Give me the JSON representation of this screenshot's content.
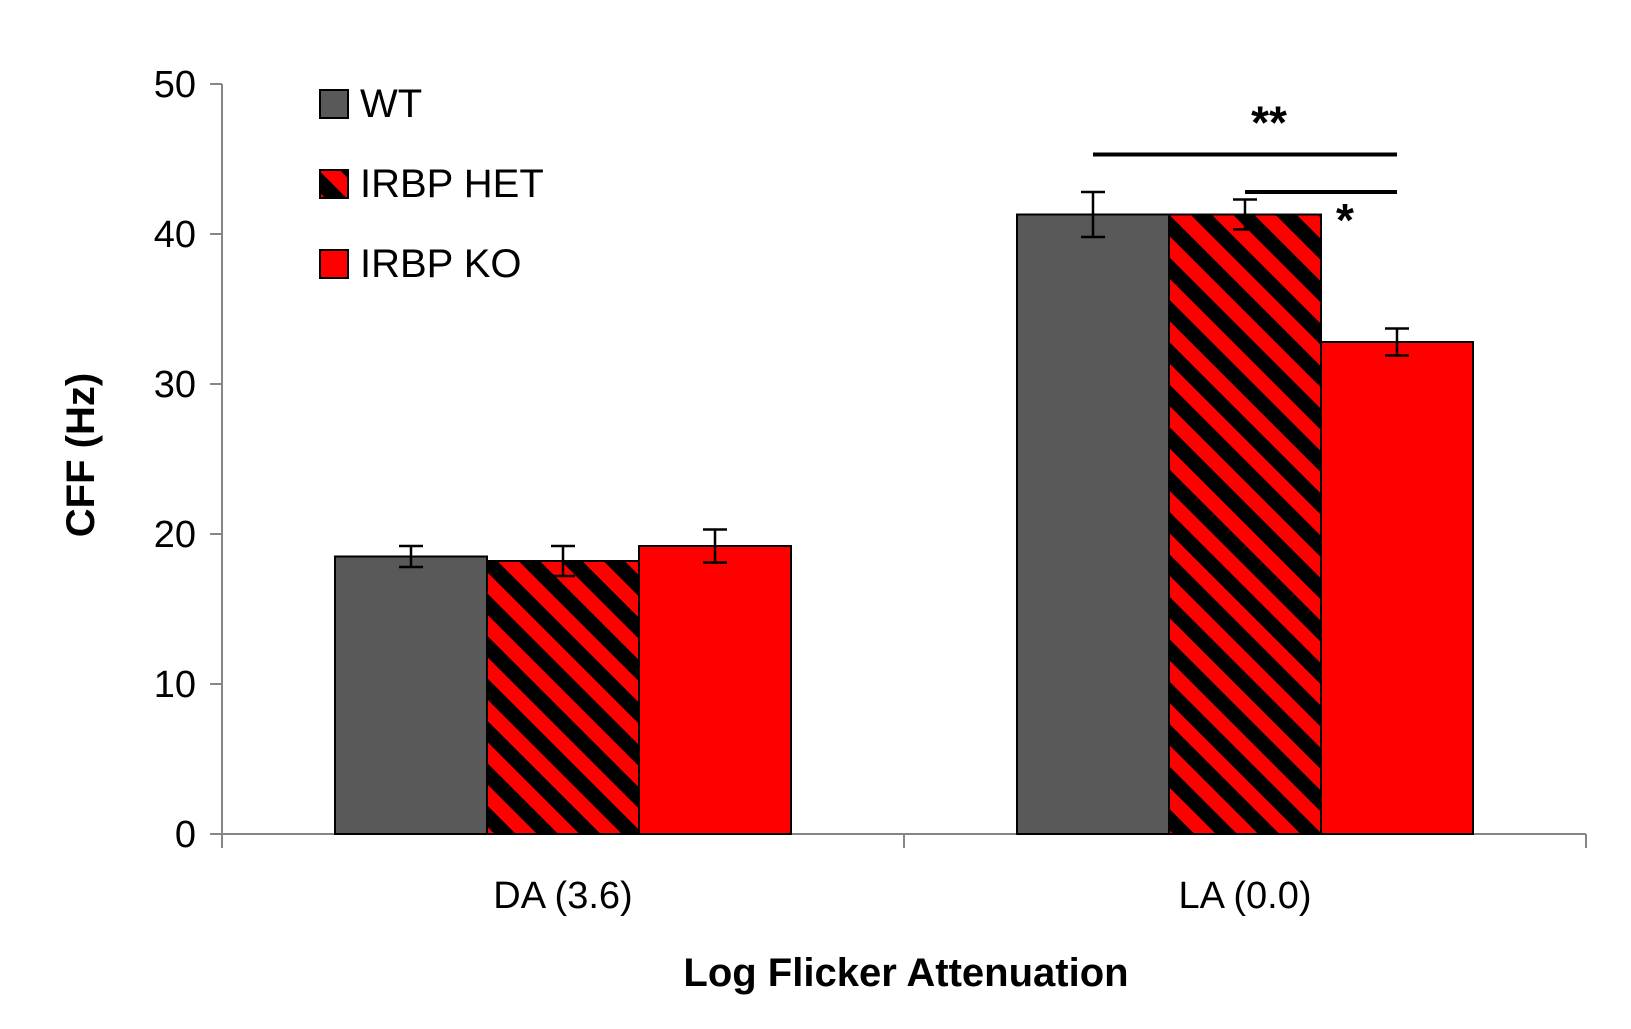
{
  "chart_data": {
    "type": "bar",
    "title": "",
    "xlabel": "Log Flicker Attenuation",
    "ylabel": "CFF (Hz)",
    "ylim": [
      0,
      50
    ],
    "yticks": [
      0,
      10,
      20,
      30,
      40,
      50
    ],
    "ytick_labels": [
      "0",
      "10",
      "20",
      "30",
      "40",
      "50"
    ],
    "categories": [
      "DA (3.6)",
      "LA (0.0)"
    ],
    "series": [
      {
        "name": "WT",
        "values": [
          18.5,
          41.3
        ],
        "errors": [
          0.7,
          1.5
        ],
        "color": "#595959",
        "pattern": "solid"
      },
      {
        "name": "IRBP HET",
        "values": [
          18.2,
          41.3
        ],
        "errors": [
          1.0,
          1.0
        ],
        "color": "#ff0000",
        "pattern": "hatch",
        "hatch_color": "#000000"
      },
      {
        "name": "IRBP KO",
        "values": [
          19.2,
          32.8
        ],
        "errors": [
          1.1,
          0.9
        ],
        "color": "#ff0000",
        "pattern": "solid"
      }
    ],
    "legend_position": "top-left",
    "grid": false,
    "annotations": [
      {
        "label": "**",
        "category_index": 1,
        "from_series": 0,
        "to_series": 2,
        "y": 45.3
      },
      {
        "label": "*",
        "category_index": 1,
        "from_series": 1,
        "to_series": 2,
        "y": 42.8
      }
    ]
  }
}
